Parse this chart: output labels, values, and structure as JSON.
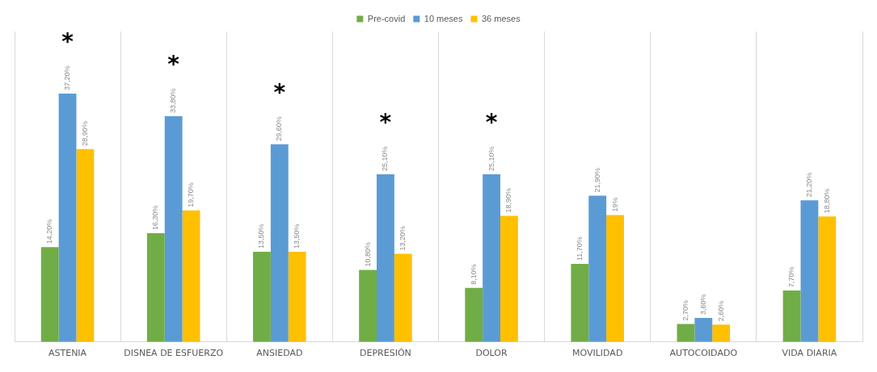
{
  "chart_data": {
    "type": "bar",
    "categories": [
      "ASTENIA",
      "DISNEA DE ESFUERZO",
      "ANSIEDAD",
      "DEPRESIÓN",
      "DOLOR",
      "MOVILIDAD",
      "AUTOCOIDADO",
      "VIDA DIARIA"
    ],
    "series": [
      {
        "name": "Pre-covid",
        "color": "#70ad47",
        "values": [
          14.2,
          16.3,
          13.5,
          10.8,
          8.1,
          11.7,
          2.7,
          7.7
        ],
        "value_labels": [
          "14,20%",
          "16,30%",
          "13,50%",
          "10,80%",
          "8,10%",
          "11,70%",
          "2,70%",
          "7,70%"
        ]
      },
      {
        "name": "10 meses",
        "color": "#5b9bd5",
        "values": [
          37.2,
          33.8,
          29.6,
          25.1,
          25.1,
          21.9,
          3.6,
          21.2
        ],
        "value_labels": [
          "37,20%",
          "33,80%",
          "29,60%",
          "25,10%",
          "25,10%",
          "21,90%",
          "3,60%",
          "21,20%"
        ]
      },
      {
        "name": "36 meses",
        "color": "#ffc000",
        "values": [
          28.9,
          19.7,
          13.5,
          13.2,
          18.9,
          19,
          2.6,
          18.8
        ],
        "value_labels": [
          "28,90%",
          "19,70%",
          "13,50%",
          "13,20%",
          "18,90%",
          "19%",
          "2,60%",
          "18,80%"
        ]
      }
    ],
    "annotations": [
      {
        "text": "*",
        "x": "ASTENIA",
        "y": 37.2
      },
      {
        "text": "*",
        "x": "DISNEA DE ESFUERZO",
        "y": 33.8
      },
      {
        "text": "*",
        "x": "ANSIEDAD",
        "y": 29.6
      },
      {
        "text": "*",
        "x": "DEPRESIÓN",
        "y": 25.1
      },
      {
        "text": "*",
        "x": "DOLOR",
        "y": 25.1
      }
    ],
    "grid": "x",
    "legend": "top"
  }
}
